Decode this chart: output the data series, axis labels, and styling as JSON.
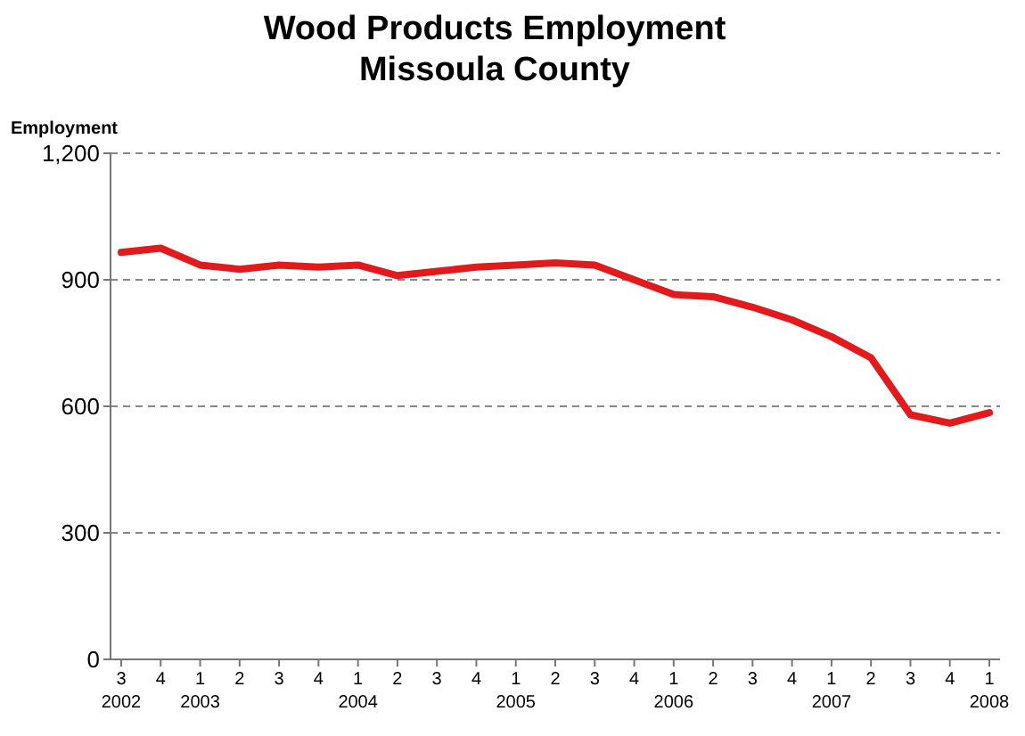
{
  "chart_data": {
    "type": "line",
    "title": "Wood Products Employment\nMissoula County",
    "ylabel": "Employment",
    "categories": [
      "3 2002",
      "4",
      "1 2003",
      "2",
      "3",
      "4",
      "1 2004",
      "2",
      "3",
      "4",
      "1 2005",
      "2",
      "3",
      "4",
      "1 2006",
      "2",
      "3",
      "4",
      "1 2007",
      "2",
      "3",
      "4",
      "1 2008"
    ],
    "series": [
      {
        "color": "#e31a1c",
        "values": [
          965,
          975,
          935,
          925,
          935,
          930,
          935,
          910,
          920,
          930,
          935,
          940,
          935,
          900,
          865,
          860,
          835,
          805,
          765,
          715,
          580,
          560,
          585
        ]
      }
    ],
    "ylim": [
      0,
      1200
    ],
    "yticks": [
      0,
      300,
      600,
      900,
      {
        "value": 1200,
        "label": "1,200"
      }
    ],
    "grid": "y",
    "marker": "none",
    "line_style": "solid"
  }
}
